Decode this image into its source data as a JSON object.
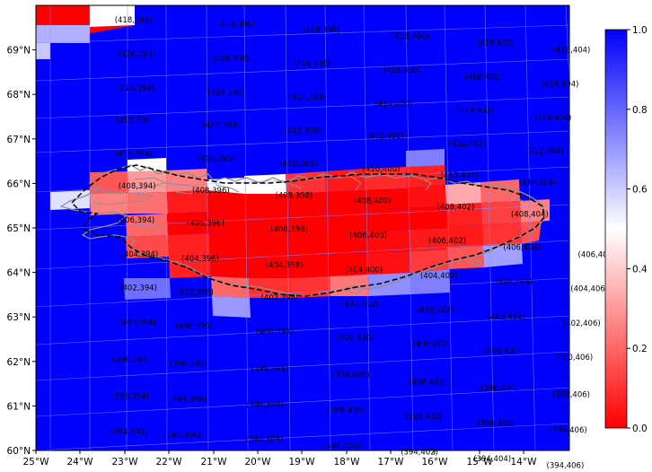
{
  "chart_data": {
    "type": "heatmap",
    "projection": "polar-stereographic grid tiles over Iceland",
    "x_axis": {
      "ticks": [
        "25°W",
        "24°W",
        "23°W",
        "22°W",
        "21°W",
        "20°W",
        "19°W",
        "18°W",
        "17°W",
        "16°W",
        "15°W",
        "14°W"
      ],
      "range_deg": [
        -25,
        -13
      ]
    },
    "y_axis": {
      "ticks": [
        "60°N",
        "61°N",
        "62°N",
        "63°N",
        "64°N",
        "65°N",
        "66°N",
        "67°N",
        "68°N",
        "69°N"
      ],
      "range_deg": [
        60,
        70
      ]
    },
    "colorbar": {
      "min": 0.0,
      "max": 1.0,
      "ticks": [
        "0.0",
        "0.2",
        "0.4",
        "0.6",
        "0.8",
        "1.0"
      ],
      "low_color": "#ff0000",
      "mid_color": "#ffffff",
      "high_color": "#0000ff"
    },
    "grid_lines": true,
    "overlay": [
      "coastline (grey)",
      "region boundary (dashed black)"
    ],
    "tile_labels": [
      {
        "label": "(418,394)",
        "lon": -22.8,
        "lat": 69.72
      },
      {
        "label": "(418,396)",
        "lon": -20.5,
        "lat": 69.74
      },
      {
        "label": "(418,398)",
        "lon": -18.6,
        "lat": 69.7
      },
      {
        "label": "(418,400)",
        "lon": -16.6,
        "lat": 69.66
      },
      {
        "label": "(418,402)",
        "lon": -14.7,
        "lat": 69.6
      },
      {
        "label": "(418,404)",
        "lon": -13.0,
        "lat": 69.52
      },
      {
        "label": "(416,394)",
        "lon": -22.7,
        "lat": 68.96
      },
      {
        "label": "(416,396)",
        "lon": -20.6,
        "lat": 68.96
      },
      {
        "label": "(416,398)",
        "lon": -18.8,
        "lat": 68.94
      },
      {
        "label": "(416,400)",
        "lon": -16.8,
        "lat": 68.88
      },
      {
        "label": "(416,402)",
        "lon": -15.0,
        "lat": 68.82
      },
      {
        "label": "(416,404)",
        "lon": -13.3,
        "lat": 68.74
      },
      {
        "label": "(414,394)",
        "lon": -22.7,
        "lat": 68.2
      },
      {
        "label": "(414,396)",
        "lon": -20.7,
        "lat": 68.2
      },
      {
        "label": "(414,398)",
        "lon": -18.9,
        "lat": 68.18
      },
      {
        "label": "(414,400)",
        "lon": -17.0,
        "lat": 68.12
      },
      {
        "label": "(414,402)",
        "lon": -15.2,
        "lat": 68.06
      },
      {
        "label": "(414,404)",
        "lon": -13.5,
        "lat": 67.98
      },
      {
        "label": "(412,394)",
        "lon": -22.7,
        "lat": 67.48
      },
      {
        "label": "(412,396)",
        "lon": -20.8,
        "lat": 67.46
      },
      {
        "label": "(412,398)",
        "lon": -19.0,
        "lat": 67.42
      },
      {
        "label": "(412,400)",
        "lon": -17.2,
        "lat": 67.38
      },
      {
        "label": "(412,402)",
        "lon": -15.4,
        "lat": 67.3
      },
      {
        "label": "(412,404)",
        "lon": -13.7,
        "lat": 67.22
      },
      {
        "label": "(410,394)",
        "lon": -22.7,
        "lat": 66.72
      },
      {
        "label": "(410,396)",
        "lon": -20.9,
        "lat": 66.7
      },
      {
        "label": "(410,398)",
        "lon": -19.1,
        "lat": 66.68
      },
      {
        "label": "(410,400)",
        "lon": -17.3,
        "lat": 66.64
      },
      {
        "label": "(410,402)",
        "lon": -15.6,
        "lat": 66.58
      },
      {
        "label": "(410,404)",
        "lon": -13.9,
        "lat": 66.5
      },
      {
        "label": "(408,394)",
        "lon": -22.6,
        "lat": 66.0
      },
      {
        "label": "(408,396)",
        "lon": -21.0,
        "lat": 65.98
      },
      {
        "label": "(408,398)",
        "lon": -19.2,
        "lat": 65.96
      },
      {
        "label": "(408,400)",
        "lon": -17.5,
        "lat": 65.92
      },
      {
        "label": "(408,402)",
        "lon": -15.7,
        "lat": 65.86
      },
      {
        "label": "(408,404)",
        "lon": -14.1,
        "lat": 65.78
      },
      {
        "label": "(406,394)",
        "lon": -22.6,
        "lat": 65.24
      },
      {
        "label": "(406,396)",
        "lon": -21.1,
        "lat": 65.24
      },
      {
        "label": "(406,398)",
        "lon": -19.3,
        "lat": 65.2
      },
      {
        "label": "(406,400)",
        "lon": -17.6,
        "lat": 65.14
      },
      {
        "label": "(406,402)",
        "lon": -15.9,
        "lat": 65.1
      },
      {
        "label": "(406,404)",
        "lon": -14.3,
        "lat": 65.02
      },
      {
        "label": "(406,406)",
        "lon": -12.7,
        "lat": 64.94
      },
      {
        "label": "(404,394)",
        "lon": -22.5,
        "lat": 64.48
      },
      {
        "label": "(404,396)",
        "lon": -21.2,
        "lat": 64.44
      },
      {
        "label": "(404,398)",
        "lon": -19.4,
        "lat": 64.38
      },
      {
        "label": "(404,400)",
        "lon": -17.7,
        "lat": 64.36
      },
      {
        "label": "(404,402)",
        "lon": -16.1,
        "lat": 64.3
      },
      {
        "label": "(404,404)",
        "lon": -14.5,
        "lat": 64.24
      },
      {
        "label": "(404,406)",
        "lon": -12.9,
        "lat": 64.16
      },
      {
        "label": "(402,394)",
        "lon": -22.5,
        "lat": 63.72
      },
      {
        "label": "(402,396)",
        "lon": -21.3,
        "lat": 63.68
      },
      {
        "label": "(402,398)",
        "lon": -19.5,
        "lat": 63.64
      },
      {
        "label": "(402,400)",
        "lon": -17.8,
        "lat": 63.58
      },
      {
        "label": "(402,402)",
        "lon": -16.2,
        "lat": 63.52
      },
      {
        "label": "(402,404)",
        "lon": -14.7,
        "lat": 63.44
      },
      {
        "label": "(402,406)",
        "lon": -13.1,
        "lat": 63.38
      },
      {
        "label": "(400,394)",
        "lon": -22.5,
        "lat": 62.94
      },
      {
        "label": "(400,396)",
        "lon": -21.3,
        "lat": 62.92
      },
      {
        "label": "(400,398)",
        "lon": -19.6,
        "lat": 62.88
      },
      {
        "label": "(400,400)",
        "lon": -17.9,
        "lat": 62.82
      },
      {
        "label": "(400,402)",
        "lon": -16.3,
        "lat": 62.76
      },
      {
        "label": "(400,404)",
        "lon": -14.8,
        "lat": 62.68
      },
      {
        "label": "(400,406)",
        "lon": -13.3,
        "lat": 62.6
      },
      {
        "label": "(398,394)",
        "lon": -22.6,
        "lat": 62.1
      },
      {
        "label": "(398,396)",
        "lon": -21.4,
        "lat": 62.08
      },
      {
        "label": "(398,398)",
        "lon": -19.7,
        "lat": 62.04
      },
      {
        "label": "(398,400)",
        "lon": -18.0,
        "lat": 61.98
      },
      {
        "label": "(398,402)",
        "lon": -16.4,
        "lat": 61.9
      },
      {
        "label": "(398,404)",
        "lon": -14.9,
        "lat": 61.84
      },
      {
        "label": "(398,406)",
        "lon": -13.4,
        "lat": 61.76
      },
      {
        "label": "(396,394)",
        "lon": -22.6,
        "lat": 61.28
      },
      {
        "label": "(396,396)",
        "lon": -21.4,
        "lat": 61.26
      },
      {
        "label": "(396,398)",
        "lon": -19.8,
        "lat": 61.22
      },
      {
        "label": "(396,400)",
        "lon": -18.1,
        "lat": 61.18
      },
      {
        "label": "(396,402)",
        "lon": -16.5,
        "lat": 61.12
      },
      {
        "label": "(396,404)",
        "lon": -15.0,
        "lat": 61.04
      },
      {
        "label": "(396,406)",
        "lon": -13.5,
        "lat": 60.96
      },
      {
        "label": "(394,394)",
        "lon": -22.6,
        "lat": 60.48
      },
      {
        "label": "(394,396)",
        "lon": -21.5,
        "lat": 60.46
      },
      {
        "label": "(394,398)",
        "lon": -19.8,
        "lat": 60.44
      },
      {
        "label": "(394,400)",
        "lon": -18.2,
        "lat": 60.38
      },
      {
        "label": "(394,402)",
        "lon": -16.6,
        "lat": 60.32
      },
      {
        "label": "(394,404)",
        "lon": -15.1,
        "lat": 60.24
      },
      {
        "label": "(394,406)",
        "lon": -13.6,
        "lat": 60.16
      }
    ],
    "non_blue_tiles": [
      {
        "label": "(418,394)",
        "value": 0.0
      },
      {
        "label": "(418,394)e",
        "value": 0.5
      },
      {
        "label": "(410,394)e",
        "value": 0.6
      },
      {
        "label": "(410,396)",
        "value": 0.5
      },
      {
        "label": "(410,402)",
        "value": 0.75
      },
      {
        "label": "(408,394)",
        "value": 0.2
      },
      {
        "label": "(408,396)",
        "value": 0.3
      },
      {
        "label": "(408,398)",
        "value": 0.5
      },
      {
        "label": "(408,400)",
        "value": 0.05
      },
      {
        "label": "(408,402)",
        "value": 0.1
      },
      {
        "label": "(408,404)",
        "value": 0.35
      },
      {
        "label": "(406,396)",
        "value": 0.1
      },
      {
        "label": "(406,398)",
        "value": 0.0
      },
      {
        "label": "(406,400)",
        "value": 0.0
      },
      {
        "label": "(406,402)",
        "value": 0.05
      },
      {
        "label": "(406,404)",
        "value": 0.15
      },
      {
        "label": "(406,406)",
        "value": 0.25
      },
      {
        "label": "(404,396)",
        "value": 0.15
      },
      {
        "label": "(404,398)",
        "value": 0.0
      },
      {
        "label": "(404,400)",
        "value": 0.0
      },
      {
        "label": "(404,402)",
        "value": 0.1
      },
      {
        "label": "(404,404)",
        "value": 0.65
      },
      {
        "label": "(402,398)",
        "value": 0.4
      },
      {
        "label": "(402,400)",
        "value": 0.2
      },
      {
        "label": "(402,402)",
        "value": 0.7
      }
    ]
  }
}
